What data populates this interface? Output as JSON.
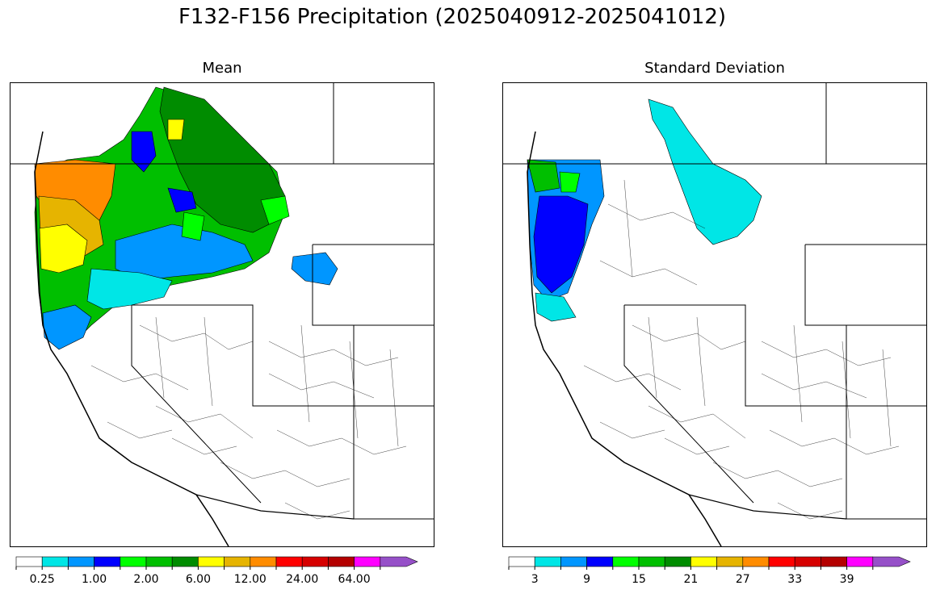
{
  "title": "F132-F156 Precipitation (2025040912-2025041012)",
  "panels": [
    {
      "title": "Mean",
      "colorbar": {
        "colors": [
          "#ffffff",
          "#00e6e6",
          "#0096ff",
          "#0000ff",
          "#00ff00",
          "#00bf00",
          "#008c00",
          "#ffff00",
          "#e6b400",
          "#ff8c00",
          "#ff0000",
          "#d60000",
          "#b40000",
          "#ff00ff",
          "#9650c8"
        ],
        "tick_labels": [
          "0.25",
          "1.00",
          "2.00",
          "6.00",
          "12.00",
          "24.00",
          "64.00"
        ],
        "extend": "max"
      }
    },
    {
      "title": "Standard Deviation",
      "colorbar": {
        "colors": [
          "#ffffff",
          "#00e6e6",
          "#0096ff",
          "#0000ff",
          "#00ff00",
          "#00bf00",
          "#008c00",
          "#ffff00",
          "#e6b400",
          "#ff8c00",
          "#ff0000",
          "#d60000",
          "#b40000",
          "#ff00ff",
          "#9650c8"
        ],
        "tick_labels": [
          "3",
          "9",
          "15",
          "21",
          "27",
          "33",
          "39"
        ],
        "extend": "max"
      }
    }
  ]
}
